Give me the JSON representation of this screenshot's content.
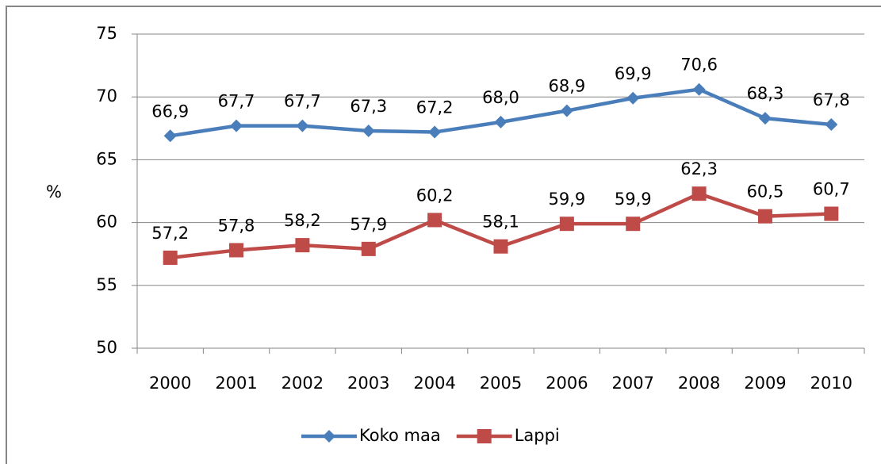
{
  "chart_data": {
    "type": "line",
    "y_label": "%",
    "categories": [
      "2000",
      "2001",
      "2002",
      "2003",
      "2004",
      "2005",
      "2006",
      "2007",
      "2008",
      "2009",
      "2010"
    ],
    "series": [
      {
        "name": "Koko maa",
        "color": "#4a7ebb",
        "marker": "diamond",
        "values": [
          66.9,
          67.7,
          67.7,
          67.3,
          67.2,
          68.0,
          68.9,
          69.9,
          70.6,
          68.3,
          67.8
        ],
        "value_labels": [
          "66,9",
          "67,7",
          "67,7",
          "67,3",
          "67,2",
          "68,0",
          "68,9",
          "69,9",
          "70,6",
          "68,3",
          "67,8"
        ]
      },
      {
        "name": "Lappi",
        "color": "#be4b48",
        "marker": "square",
        "values": [
          57.2,
          57.8,
          58.2,
          57.9,
          60.2,
          58.1,
          59.9,
          59.9,
          62.3,
          60.5,
          60.7
        ],
        "value_labels": [
          "57,2",
          "57,8",
          "58,2",
          "57,9",
          "60,2",
          "58,1",
          "59,9",
          "59,9",
          "62,3",
          "60,5",
          "60,7"
        ]
      }
    ],
    "ylim": [
      50,
      75
    ],
    "yticks": [
      50,
      55,
      60,
      65,
      70,
      75
    ],
    "grid": true,
    "legend": "bottom"
  }
}
